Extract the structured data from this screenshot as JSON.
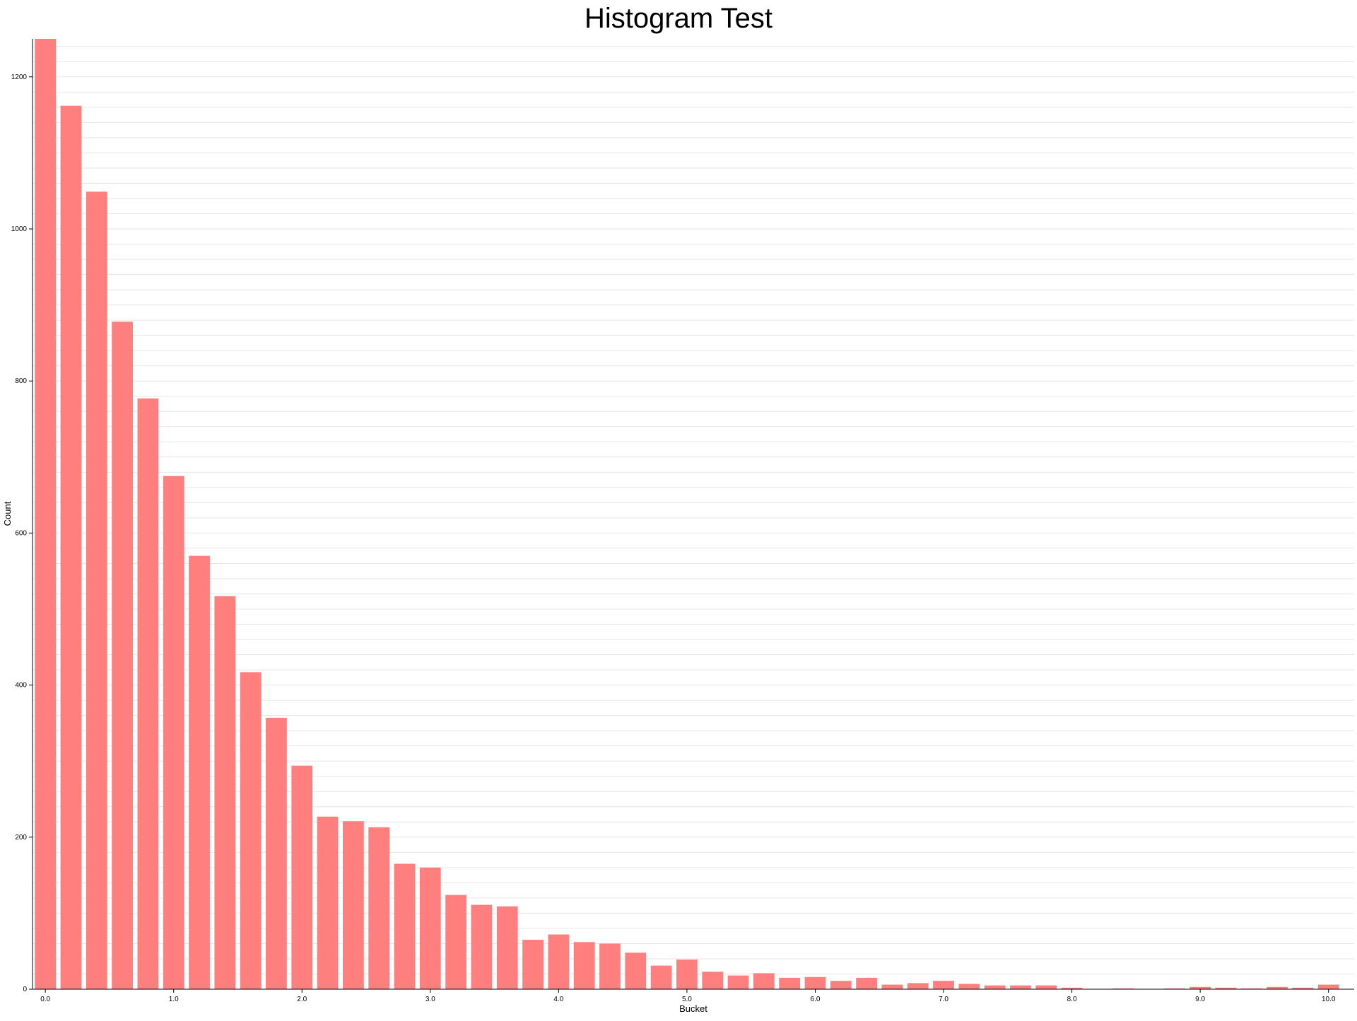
{
  "chart_data": {
    "type": "bar",
    "title": "Histogram Test",
    "xlabel": "Bucket",
    "ylabel": "Count",
    "bar_color": "#ff7f7f",
    "grid": true,
    "ylim": [
      0,
      1250
    ],
    "xlim": [
      -0.1,
      10.2
    ],
    "bin_width": 0.2,
    "y_ticks": [
      0,
      200,
      400,
      600,
      800,
      1000,
      1200
    ],
    "y_tick_labels": [
      "0",
      "200",
      "400",
      "600",
      "800",
      "1000",
      "1200"
    ],
    "x_ticks": [
      0,
      1,
      2,
      3,
      4,
      5,
      6,
      7,
      8,
      9,
      10
    ],
    "x_tick_labels": [
      "0.0",
      "1.0",
      "2.0",
      "3.0",
      "4.0",
      "5.0",
      "6.0",
      "7.0",
      "8.0",
      "9.0",
      "10.0"
    ],
    "x": [
      0.0,
      0.2,
      0.4,
      0.6,
      0.8,
      1.0,
      1.2,
      1.4,
      1.6,
      1.8,
      2.0,
      2.2,
      2.4,
      2.6,
      2.8,
      3.0,
      3.2,
      3.4,
      3.6,
      3.8,
      4.0,
      4.2,
      4.4,
      4.6,
      4.8,
      5.0,
      5.2,
      5.4,
      5.6,
      5.8,
      6.0,
      6.2,
      6.4,
      6.6,
      6.8,
      7.0,
      7.2,
      7.4,
      7.6,
      7.8,
      8.0,
      8.2,
      8.4,
      8.6,
      8.8,
      9.0,
      9.2,
      9.4,
      9.6,
      9.8,
      10.0
    ],
    "values": [
      1250,
      1162,
      1049,
      878,
      777,
      675,
      570,
      517,
      417,
      357,
      294,
      227,
      221,
      213,
      165,
      160,
      124,
      111,
      109,
      65,
      72,
      62,
      60,
      48,
      31,
      39,
      23,
      18,
      21,
      15,
      16,
      11,
      15,
      6,
      8,
      11,
      7,
      5,
      5,
      5,
      2,
      0,
      1,
      0,
      1,
      3,
      2,
      1,
      3,
      2,
      6
    ]
  }
}
